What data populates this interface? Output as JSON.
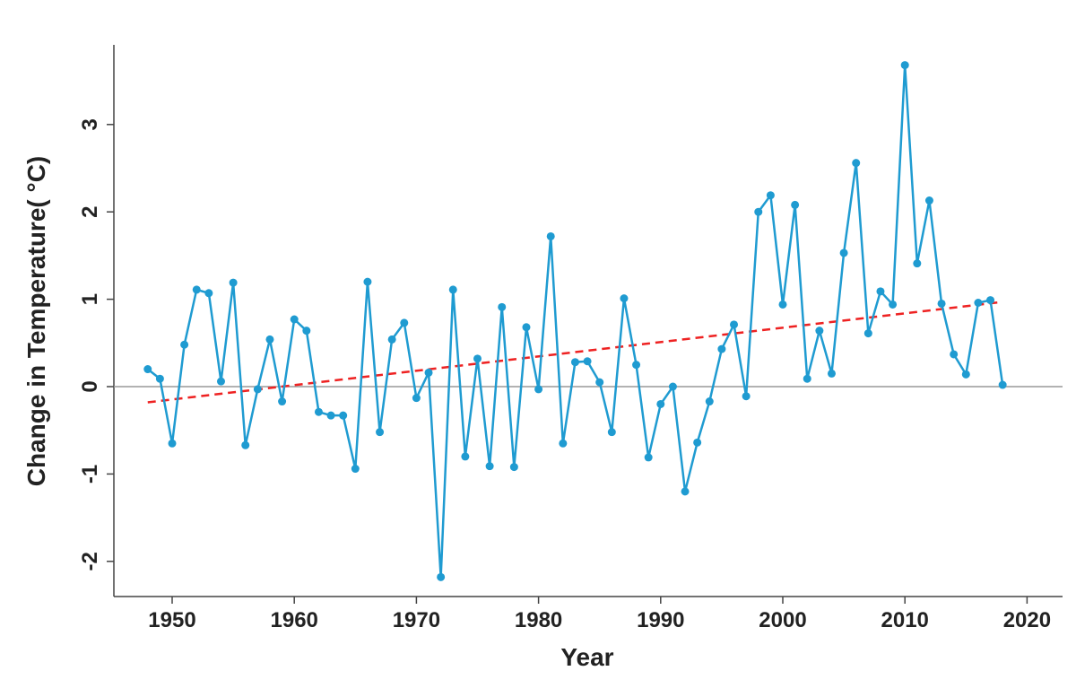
{
  "chart_data": {
    "type": "line",
    "title": "",
    "xlabel": "Year",
    "ylabel": "Change in Temperature( °C)",
    "xlim": [
      1945,
      2023
    ],
    "ylim": [
      -2.4,
      3.9
    ],
    "xticks": [
      1950,
      1960,
      1970,
      1980,
      1990,
      2000,
      2010,
      2020
    ],
    "yticks": [
      -2,
      -1,
      0,
      1,
      2,
      3
    ],
    "grid": false,
    "reference_line": 0,
    "colors": {
      "series": "#1f9bd1",
      "trend": "#ee2222",
      "zero_line": "#999999"
    },
    "x": [
      1948,
      1949,
      1950,
      1951,
      1952,
      1953,
      1954,
      1955,
      1956,
      1957,
      1958,
      1959,
      1960,
      1961,
      1962,
      1963,
      1964,
      1965,
      1966,
      1967,
      1968,
      1969,
      1970,
      1971,
      1972,
      1973,
      1974,
      1975,
      1976,
      1977,
      1978,
      1979,
      1980,
      1981,
      1982,
      1983,
      1984,
      1985,
      1986,
      1987,
      1988,
      1989,
      1990,
      1991,
      1992,
      1993,
      1994,
      1995,
      1996,
      1997,
      1998,
      1999,
      2000,
      2001,
      2002,
      2003,
      2004,
      2005,
      2006,
      2007,
      2008,
      2009,
      2010,
      2011,
      2012,
      2013,
      2014,
      2015,
      2016,
      2017,
      2018
    ],
    "y": [
      0.2,
      0.09,
      -0.65,
      0.48,
      1.11,
      1.07,
      0.06,
      1.19,
      -0.67,
      -0.03,
      0.54,
      -0.17,
      0.77,
      0.64,
      -0.29,
      -0.33,
      -0.33,
      -0.94,
      1.2,
      -0.52,
      0.54,
      0.73,
      -0.13,
      0.16,
      -2.18,
      1.11,
      -0.8,
      0.32,
      -0.91,
      0.91,
      -0.92,
      0.68,
      -0.03,
      1.72,
      -0.65,
      0.28,
      0.29,
      0.05,
      -0.52,
      1.01,
      0.25,
      -0.81,
      -0.2,
      0.0,
      -1.2,
      -0.64,
      -0.17,
      0.43,
      0.71,
      -0.11,
      2.0,
      2.19,
      0.94,
      2.08,
      0.09,
      0.64,
      0.15,
      1.53,
      2.56,
      0.61,
      1.09,
      0.94,
      3.68,
      1.41,
      2.13,
      0.95,
      0.37,
      0.14,
      0.96,
      0.99,
      0.02
    ],
    "trend": {
      "x": [
        1948,
        2018
      ],
      "y": [
        -0.18,
        0.97
      ],
      "style": "dashed"
    }
  }
}
